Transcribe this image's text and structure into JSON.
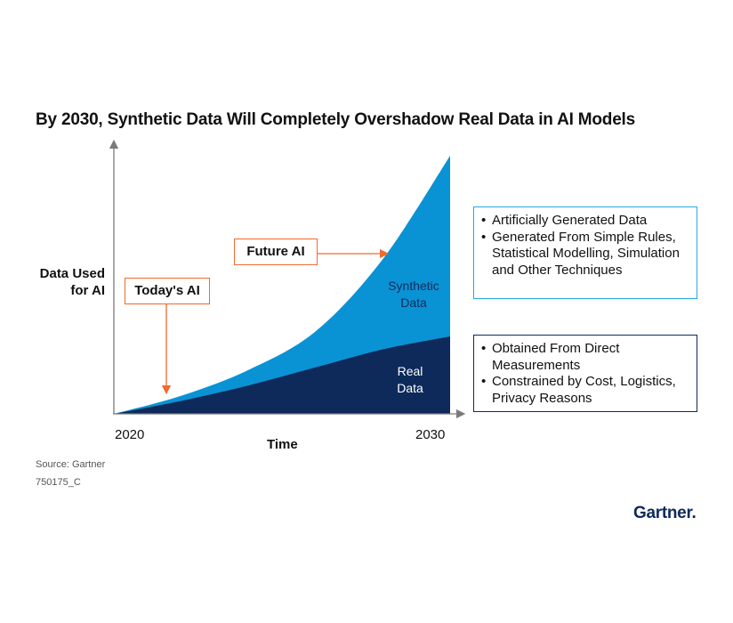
{
  "chart_data": {
    "type": "area",
    "title": "By 2030,  Synthetic Data Will Completely Overshadow Real Data in AI Models",
    "xlabel": "Time",
    "ylabel": "Data Used for AI",
    "x_ticks": [
      "2020",
      "2030"
    ],
    "xlim": [
      2020,
      2030
    ],
    "ylim": [
      0,
      100
    ],
    "grid": false,
    "series": [
      {
        "name": "Real Data",
        "label_lines": [
          "Real",
          "Data"
        ],
        "color": "#0d2a5a",
        "x": [
          2020,
          2022,
          2024,
          2026,
          2028,
          2030
        ],
        "values": [
          0,
          5,
          11,
          18,
          25,
          30
        ]
      },
      {
        "name": "Synthetic Data",
        "label_lines": [
          "Synthetic",
          "Data"
        ],
        "color": "#0a93d4",
        "x": [
          2020,
          2022,
          2024,
          2026,
          2028,
          2030
        ],
        "values": [
          0,
          2,
          6,
          14,
          35,
          70
        ]
      }
    ],
    "annotations": [
      {
        "label": "Today's AI",
        "x": 2021.5,
        "direction": "down"
      },
      {
        "label": "Future AI",
        "x": 2027.5,
        "direction": "right"
      }
    ]
  },
  "descriptions": {
    "synthetic": [
      "Artificially Generated Data",
      "Generated From Simple Rules, Statistical Modelling, Simulation and Other Techniques"
    ],
    "real": [
      "Obtained From Direct Measurements",
      "Constrained by Cost, Logistics, Privacy Reasons"
    ]
  },
  "footer": {
    "source": "Source: Gartner",
    "code": "750175_C",
    "logo": "Gartner",
    "logo_mark": "."
  },
  "colors": {
    "accent": "#f26a2e",
    "synthetic": "#0a93d4",
    "real": "#0d2a5a",
    "synthetic_border": "#29a8e0"
  }
}
